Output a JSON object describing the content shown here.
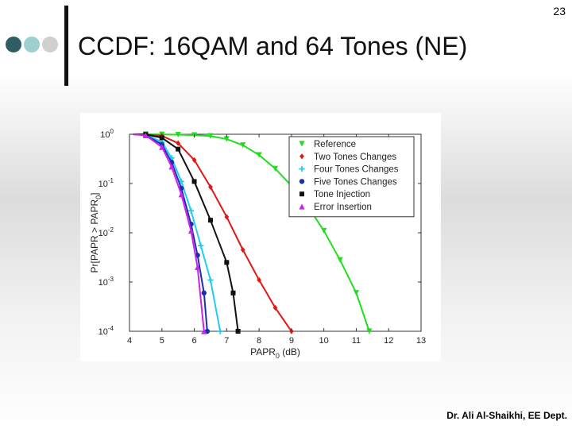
{
  "slide": {
    "page_number": "23",
    "title": "CCDF: 16QAM and 64 Tones (NE)",
    "footer": "Dr. Ali Al-Shaikhi, EE Dept.",
    "bullet_colors": [
      "#2e5d63",
      "#9fcfcf",
      "#cfcfcf"
    ]
  },
  "chart_data": {
    "type": "line",
    "xlabel": "PAPR",
    "xlabel_sub": "0",
    "xlabel_unit": " (dB)",
    "ylabel": "Pr[PAPR > PAPR",
    "ylabel_sub": "0",
    "ylabel_end": "]",
    "yscale": "log",
    "xlim": [
      4,
      13
    ],
    "ylim": [
      0.0001,
      1
    ],
    "xticks": [
      "4",
      "5",
      "6",
      "7",
      "8",
      "9",
      "10",
      "11",
      "12",
      "13"
    ],
    "yticks": [
      {
        "base": "10",
        "exp": "0",
        "value": 1
      },
      {
        "base": "10",
        "exp": "-1",
        "value": 0.1
      },
      {
        "base": "10",
        "exp": "-2",
        "value": 0.01
      },
      {
        "base": "10",
        "exp": "-3",
        "value": 0.001
      },
      {
        "base": "10",
        "exp": "-4",
        "value": 0.0001
      }
    ],
    "grid": false,
    "legend_position": "top-right",
    "series": [
      {
        "name": "Reference",
        "color": "#22dd22",
        "marker": "triangle-down",
        "x": [
          4.1,
          4.5,
          5.0,
          5.5,
          6.0,
          6.5,
          7.0,
          7.5,
          8.0,
          8.5,
          9.0,
          9.5,
          10.0,
          10.5,
          11.0,
          11.4
        ],
        "y": [
          1.0,
          1.0,
          0.99,
          0.98,
          0.96,
          0.92,
          0.8,
          0.6,
          0.38,
          0.2,
          0.09,
          0.035,
          0.011,
          0.0028,
          0.0006,
          0.0001
        ]
      },
      {
        "name": "Two Tones Changes",
        "color": "#e01818",
        "marker": "diamond",
        "x": [
          4.1,
          4.5,
          5.0,
          5.5,
          6.0,
          6.5,
          7.0,
          7.5,
          8.0,
          8.5,
          9.0
        ],
        "y": [
          1.0,
          0.99,
          0.93,
          0.66,
          0.3,
          0.085,
          0.021,
          0.0045,
          0.0011,
          0.0003,
          0.0001
        ]
      },
      {
        "name": "Four Tones Changes",
        "color": "#22ccee",
        "marker": "plus",
        "x": [
          4.1,
          4.5,
          5.0,
          5.3,
          5.6,
          5.9,
          6.2,
          6.5,
          6.8
        ],
        "y": [
          1.0,
          0.97,
          0.7,
          0.33,
          0.11,
          0.028,
          0.0055,
          0.0011,
          0.0001
        ]
      },
      {
        "name": "Five Tones Changes",
        "color": "#1a2fb0",
        "marker": "circle",
        "x": [
          4.1,
          4.5,
          5.0,
          5.3,
          5.6,
          5.9,
          6.1,
          6.3,
          6.4
        ],
        "y": [
          1.0,
          0.96,
          0.62,
          0.27,
          0.08,
          0.015,
          0.0035,
          0.0006,
          0.0001
        ]
      },
      {
        "name": "Tone Injection",
        "color": "#111111",
        "marker": "square",
        "x": [
          4.1,
          4.5,
          5.0,
          5.5,
          6.0,
          6.5,
          7.0,
          7.2,
          7.35
        ],
        "y": [
          1.0,
          0.99,
          0.85,
          0.5,
          0.11,
          0.018,
          0.0025,
          0.0006,
          0.0001
        ]
      },
      {
        "name": "Error Insertion",
        "color": "#cc22ee",
        "marker": "triangle-up",
        "x": [
          4.1,
          4.5,
          5.0,
          5.3,
          5.6,
          5.9,
          6.1,
          6.3
        ],
        "y": [
          1.0,
          0.95,
          0.55,
          0.22,
          0.06,
          0.011,
          0.002,
          0.0001
        ]
      }
    ]
  }
}
